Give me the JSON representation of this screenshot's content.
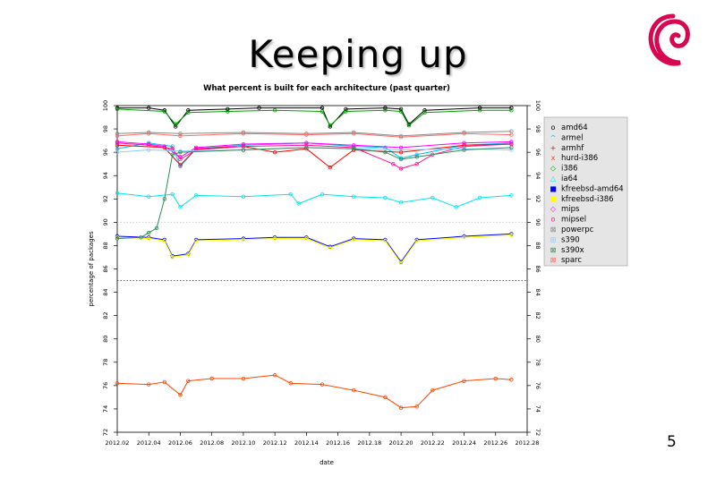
{
  "slide": {
    "title": "Keeping up",
    "page_number": "5"
  },
  "logo": {
    "icon": "debian-swirl-icon",
    "color": "#d70751"
  },
  "chart_data": {
    "type": "line",
    "title": "What percent is built for each architecture (past quarter)",
    "xlabel": "date",
    "ylabel": "percentage of packages",
    "x_tick_labels": [
      "2012.02",
      "2012.04",
      "2012.06",
      "2012.08",
      "2012.10",
      "2012.12",
      "2012.14",
      "2012.16",
      "2012.18",
      "2012.20",
      "2012.22",
      "2012.24",
      "2012.26",
      "2012.28"
    ],
    "y_ticks": [
      72,
      74,
      76,
      78,
      80,
      82,
      84,
      86,
      88,
      90,
      92,
      94,
      96,
      98,
      100
    ],
    "y_tick_labels": [
      "72",
      "74",
      "76",
      "78",
      "80",
      "82",
      "84",
      "86",
      "88",
      "90",
      "92",
      "94",
      "96",
      "98",
      "100"
    ],
    "ylim": [
      72,
      100
    ],
    "xlim": [
      2012.02,
      2012.28
    ],
    "reference_lines": [
      {
        "y": 90,
        "color": "#c8c8c8",
        "style": "dotted"
      },
      {
        "y": 85,
        "color": "#ff0000",
        "style": "dotted"
      }
    ],
    "legend_position": "top-right",
    "series": [
      {
        "name": "amd64",
        "color": "#000000",
        "marker": "o",
        "points": [
          [
            2012.02,
            99.8
          ],
          [
            2012.04,
            99.8
          ],
          [
            2012.05,
            99.6
          ],
          [
            2012.057,
            98.2
          ],
          [
            2012.065,
            99.6
          ],
          [
            2012.09,
            99.7
          ],
          [
            2012.11,
            99.8
          ],
          [
            2012.15,
            99.8
          ],
          [
            2012.155,
            98.2
          ],
          [
            2012.165,
            99.7
          ],
          [
            2012.19,
            99.8
          ],
          [
            2012.2,
            99.7
          ],
          [
            2012.205,
            98.4
          ],
          [
            2012.215,
            99.6
          ],
          [
            2012.25,
            99.8
          ],
          [
            2012.27,
            99.8
          ]
        ]
      },
      {
        "name": "armel",
        "color": "#00bfff",
        "marker": "^",
        "points": [
          [
            2012.02,
            96.3
          ],
          [
            2012.04,
            96.8
          ],
          [
            2012.055,
            96.5
          ],
          [
            2012.06,
            94.8
          ],
          [
            2012.07,
            96.3
          ],
          [
            2012.1,
            96.6
          ],
          [
            2012.14,
            96.8
          ],
          [
            2012.17,
            96.5
          ],
          [
            2012.19,
            96.4
          ],
          [
            2012.2,
            95.5
          ],
          [
            2012.21,
            95.8
          ],
          [
            2012.24,
            96.6
          ],
          [
            2012.27,
            96.8
          ]
        ]
      },
      {
        "name": "armhf",
        "color": "#ff0000",
        "marker": "+",
        "points": [
          [
            2012.02,
            96.6
          ],
          [
            2012.05,
            96.4
          ],
          [
            2012.06,
            94.9
          ],
          [
            2012.07,
            96.3
          ],
          [
            2012.1,
            96.5
          ],
          [
            2012.12,
            96.0
          ],
          [
            2012.14,
            96.3
          ],
          [
            2012.155,
            94.7
          ],
          [
            2012.17,
            96.2
          ],
          [
            2012.2,
            96.0
          ],
          [
            2012.24,
            96.6
          ],
          [
            2012.27,
            96.7
          ]
        ]
      },
      {
        "name": "hurd-i386",
        "color": "#ff4500",
        "marker": "x",
        "points": [
          [
            2012.02,
            76.2
          ],
          [
            2012.04,
            76.1
          ],
          [
            2012.05,
            76.3
          ],
          [
            2012.06,
            75.2
          ],
          [
            2012.065,
            76.4
          ],
          [
            2012.08,
            76.6
          ],
          [
            2012.1,
            76.6
          ],
          [
            2012.12,
            76.9
          ],
          [
            2012.13,
            76.2
          ],
          [
            2012.15,
            76.1
          ],
          [
            2012.17,
            75.6
          ],
          [
            2012.19,
            75.0
          ],
          [
            2012.2,
            74.1
          ],
          [
            2012.21,
            74.2
          ],
          [
            2012.22,
            75.6
          ],
          [
            2012.24,
            76.4
          ],
          [
            2012.26,
            76.6
          ],
          [
            2012.27,
            76.5
          ]
        ]
      },
      {
        "name": "i386",
        "color": "#00a000",
        "marker": "◇",
        "points": [
          [
            2012.02,
            99.7
          ],
          [
            2012.05,
            99.5
          ],
          [
            2012.057,
            98.4
          ],
          [
            2012.065,
            99.4
          ],
          [
            2012.09,
            99.5
          ],
          [
            2012.12,
            99.6
          ],
          [
            2012.15,
            99.5
          ],
          [
            2012.155,
            98.3
          ],
          [
            2012.165,
            99.5
          ],
          [
            2012.19,
            99.6
          ],
          [
            2012.2,
            99.5
          ],
          [
            2012.205,
            98.3
          ],
          [
            2012.215,
            99.4
          ],
          [
            2012.25,
            99.6
          ],
          [
            2012.27,
            99.6
          ]
        ]
      },
      {
        "name": "ia64",
        "color": "#00e5ee",
        "marker": "△",
        "points": [
          [
            2012.02,
            92.5
          ],
          [
            2012.04,
            92.2
          ],
          [
            2012.055,
            92.4
          ],
          [
            2012.06,
            91.3
          ],
          [
            2012.07,
            92.3
          ],
          [
            2012.1,
            92.2
          ],
          [
            2012.13,
            92.4
          ],
          [
            2012.135,
            91.6
          ],
          [
            2012.15,
            92.4
          ],
          [
            2012.17,
            92.2
          ],
          [
            2012.19,
            92.1
          ],
          [
            2012.2,
            91.7
          ],
          [
            2012.22,
            92.1
          ],
          [
            2012.235,
            91.3
          ],
          [
            2012.25,
            92.1
          ],
          [
            2012.27,
            92.3
          ]
        ]
      },
      {
        "name": "kfreebsd-amd64",
        "color": "#0000ff",
        "marker": "■",
        "points": [
          [
            2012.02,
            88.8
          ],
          [
            2012.04,
            88.7
          ],
          [
            2012.05,
            88.5
          ],
          [
            2012.055,
            87.1
          ],
          [
            2012.065,
            87.3
          ],
          [
            2012.07,
            88.5
          ],
          [
            2012.1,
            88.6
          ],
          [
            2012.12,
            88.7
          ],
          [
            2012.14,
            88.7
          ],
          [
            2012.155,
            87.9
          ],
          [
            2012.17,
            88.6
          ],
          [
            2012.19,
            88.5
          ],
          [
            2012.2,
            86.6
          ],
          [
            2012.21,
            88.5
          ],
          [
            2012.24,
            88.8
          ],
          [
            2012.27,
            89.0
          ]
        ]
      },
      {
        "name": "kfreebsd-i386",
        "color": "#ffff00",
        "marker": "■",
        "points": [
          [
            2012.02,
            88.7
          ],
          [
            2012.04,
            88.6
          ],
          [
            2012.05,
            88.4
          ],
          [
            2012.055,
            87.0
          ],
          [
            2012.065,
            87.2
          ],
          [
            2012.07,
            88.4
          ],
          [
            2012.1,
            88.5
          ],
          [
            2012.12,
            88.6
          ],
          [
            2012.14,
            88.6
          ],
          [
            2012.155,
            87.8
          ],
          [
            2012.17,
            88.5
          ],
          [
            2012.19,
            88.4
          ],
          [
            2012.2,
            86.5
          ],
          [
            2012.21,
            88.4
          ],
          [
            2012.24,
            88.7
          ],
          [
            2012.27,
            88.9
          ]
        ]
      },
      {
        "name": "mips",
        "color": "#ff00ff",
        "marker": "◇",
        "points": [
          [
            2012.02,
            96.9
          ],
          [
            2012.04,
            96.7
          ],
          [
            2012.05,
            96.5
          ],
          [
            2012.06,
            95.6
          ],
          [
            2012.07,
            96.4
          ],
          [
            2012.1,
            96.7
          ],
          [
            2012.14,
            96.8
          ],
          [
            2012.17,
            96.6
          ],
          [
            2012.2,
            96.4
          ],
          [
            2012.24,
            96.8
          ],
          [
            2012.27,
            96.9
          ]
        ]
      },
      {
        "name": "mipsel",
        "color": "#ff1493",
        "marker": "o",
        "points": [
          [
            2012.02,
            96.8
          ],
          [
            2012.04,
            96.6
          ],
          [
            2012.055,
            96.3
          ],
          [
            2012.06,
            95.4
          ],
          [
            2012.07,
            96.2
          ],
          [
            2012.1,
            96.5
          ],
          [
            2012.14,
            96.6
          ],
          [
            2012.17,
            96.4
          ],
          [
            2012.195,
            95.0
          ],
          [
            2012.2,
            94.6
          ],
          [
            2012.21,
            95.0
          ],
          [
            2012.22,
            95.8
          ],
          [
            2012.24,
            96.5
          ],
          [
            2012.27,
            96.7
          ]
        ]
      },
      {
        "name": "powerpc",
        "color": "#888888",
        "marker": "⊠",
        "points": [
          [
            2012.02,
            97.6
          ],
          [
            2012.04,
            97.7
          ],
          [
            2012.06,
            97.6
          ],
          [
            2012.1,
            97.7
          ],
          [
            2012.14,
            97.6
          ],
          [
            2012.17,
            97.7
          ],
          [
            2012.2,
            97.4
          ],
          [
            2012.24,
            97.7
          ],
          [
            2012.27,
            97.8
          ]
        ]
      },
      {
        "name": "s390",
        "color": "#87cefa",
        "marker": "⊞",
        "points": [
          [
            2012.02,
            96.0
          ],
          [
            2012.04,
            96.2
          ],
          [
            2012.06,
            96.1
          ],
          [
            2012.1,
            96.2
          ],
          [
            2012.14,
            96.4
          ],
          [
            2012.17,
            96.3
          ],
          [
            2012.2,
            96.2
          ],
          [
            2012.24,
            96.3
          ],
          [
            2012.27,
            96.2
          ]
        ]
      },
      {
        "name": "s390x",
        "color": "#2e8b57",
        "marker": "⊠",
        "points": [
          [
            2012.02,
            88.6
          ],
          [
            2012.035,
            88.7
          ],
          [
            2012.04,
            89.1
          ],
          [
            2012.045,
            89.5
          ],
          [
            2012.05,
            92.0
          ],
          [
            2012.055,
            95.8
          ],
          [
            2012.06,
            96.0
          ],
          [
            2012.1,
            96.2
          ],
          [
            2012.14,
            96.4
          ],
          [
            2012.17,
            96.3
          ],
          [
            2012.19,
            96.0
          ],
          [
            2012.2,
            95.4
          ],
          [
            2012.21,
            95.6
          ],
          [
            2012.24,
            96.2
          ],
          [
            2012.27,
            96.4
          ]
        ]
      },
      {
        "name": "sparc",
        "color": "#ff6a6a",
        "marker": "⊠",
        "points": [
          [
            2012.02,
            97.4
          ],
          [
            2012.04,
            97.6
          ],
          [
            2012.06,
            97.4
          ],
          [
            2012.1,
            97.6
          ],
          [
            2012.14,
            97.5
          ],
          [
            2012.17,
            97.6
          ],
          [
            2012.2,
            97.3
          ],
          [
            2012.24,
            97.6
          ],
          [
            2012.27,
            97.5
          ]
        ]
      }
    ]
  }
}
